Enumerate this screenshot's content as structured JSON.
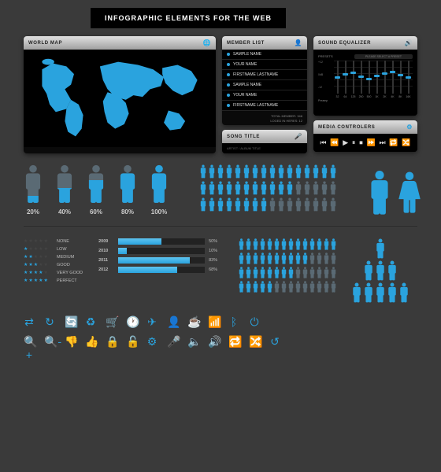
{
  "title": "INFOGRAPHIC ELEMENTS FOR THE WEB",
  "colors": {
    "accent": "#2aa3de",
    "accent_light": "#5ec3ef",
    "dim": "#5a6a74",
    "bg": "#3a3a3a",
    "panel_bg": "#0a0a0a",
    "header_grad_top": "#e0e0e0",
    "header_grad_bot": "#a0a0a0",
    "text": "#cccccc",
    "muted": "#888888"
  },
  "world_map": {
    "title": "WORLD MAP",
    "land_color": "#2aa3de",
    "sea_color": "#000000"
  },
  "member_list": {
    "title": "MEMBER LIST",
    "items": [
      "SAMPLE NAME",
      "YOUR NAME",
      "FIRSTNAME LASTNAME",
      "SAMPLE NAME",
      "YOUR NAME",
      "FIRSTNAME LASTNAME"
    ],
    "footer1": "TOTAL MEMBER: 348",
    "footer2": "LOGED IN HERES: 12"
  },
  "equalizer": {
    "title": "SOUND EQUALIZER",
    "presets_label": "PRESETS",
    "presets_value": "PLEASE SELECT A PRESET",
    "side_labels": [
      "+12",
      "0dB",
      "-12"
    ],
    "preamp_label": "Preamp",
    "bands": [
      {
        "freq": "32",
        "val": 0.45
      },
      {
        "freq": "64",
        "val": 0.55
      },
      {
        "freq": "125",
        "val": 0.6
      },
      {
        "freq": "250",
        "val": 0.48
      },
      {
        "freq": "500",
        "val": 0.4
      },
      {
        "freq": "1K",
        "val": 0.5
      },
      {
        "freq": "2K",
        "val": 0.58
      },
      {
        "freq": "4K",
        "val": 0.62
      },
      {
        "freq": "8K",
        "val": 0.52
      },
      {
        "freq": "16K",
        "val": 0.46
      }
    ]
  },
  "song": {
    "title": "SONG TITLE",
    "subtitle": "ARTIST / ALBUM TITLE"
  },
  "media": {
    "title": "MEDIA CONTROLERS",
    "icons": [
      "prev-icon",
      "rewind-icon",
      "play-icon",
      "pause-icon",
      "stop-icon",
      "forward-icon",
      "next-icon",
      "repeat-icon",
      "shuffle-icon"
    ]
  },
  "people_fill": {
    "type": "pictograph-fill",
    "items": [
      {
        "pct": 20,
        "label": "20%"
      },
      {
        "pct": 40,
        "label": "40%"
      },
      {
        "pct": 60,
        "label": "60%"
      },
      {
        "pct": 80,
        "label": "80%"
      },
      {
        "pct": 100,
        "label": "100%"
      }
    ],
    "fill_color": "#2aa3de",
    "empty_color": "#5a6a74"
  },
  "picto_grid": {
    "type": "pictograph-grid",
    "rows": 3,
    "cols": 16,
    "filled": [
      16,
      11,
      8
    ],
    "fill_color": "#2aa3de",
    "empty_color": "#5a6a74"
  },
  "stars": {
    "max": 5,
    "rows": [
      {
        "n": 0,
        "label": "NONE"
      },
      {
        "n": 1,
        "label": "LOW"
      },
      {
        "n": 2,
        "label": "MEDIUM"
      },
      {
        "n": 3,
        "label": "GOOD"
      },
      {
        "n": 4,
        "label": "VERY GOOD"
      },
      {
        "n": 5,
        "label": "PERFECT"
      }
    ],
    "fill_color": "#2aa3de",
    "empty_color": "#444444"
  },
  "year_bars": {
    "type": "bar",
    "rows": [
      {
        "year": "2009",
        "pct": 50
      },
      {
        "year": "2010",
        "pct": 10
      },
      {
        "year": "2011",
        "pct": 83
      },
      {
        "year": "2012",
        "pct": 68
      }
    ],
    "bar_color": "#2aa3de",
    "track_color": "#222222",
    "max": 100
  },
  "picto_rows2": {
    "rows": [
      {
        "total": 14,
        "filled": 14
      },
      {
        "total": 14,
        "filled": 10
      },
      {
        "total": 14,
        "filled": 8
      },
      {
        "total": 14,
        "filled": 5
      }
    ],
    "fill_color": "#2aa3de",
    "empty_color": "#5a6a74"
  },
  "pyramid": {
    "levels": [
      1,
      3,
      5
    ],
    "fill_color": "#2aa3de"
  },
  "icon_grid": {
    "color": "#2aa3de",
    "rows": [
      [
        "swap-icon",
        "replay-icon",
        "refresh-icon",
        "recycle-icon",
        "cart-icon",
        "clock-icon",
        "plane-icon",
        "person-icon",
        "cup-icon",
        "wifi-icon",
        "bluetooth-icon",
        "power-icon"
      ],
      [
        "zoom-in-icon",
        "zoom-out-icon",
        "thumbs-down-icon",
        "thumbs-up-icon",
        "lock-icon",
        "unlock-icon",
        "gear-icon",
        "microphone-icon",
        "speaker-icon",
        "volume-icon",
        "repeat-icon",
        "shuffle-icon",
        "loop-icon"
      ]
    ]
  }
}
